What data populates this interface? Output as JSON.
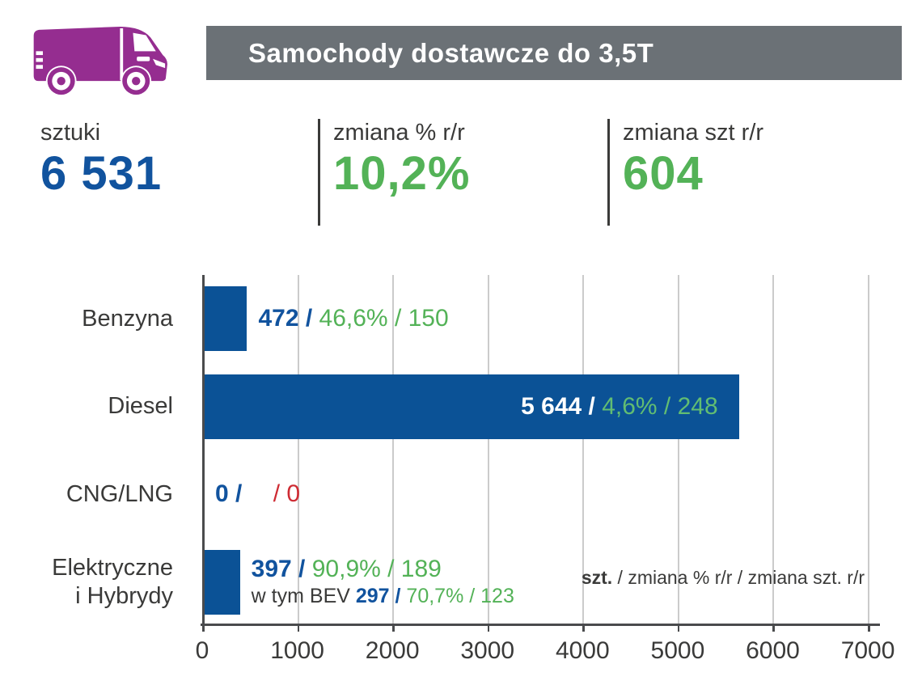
{
  "header": {
    "icon": "van-icon",
    "icon_color": "#952d90",
    "banner_color": "#6b7176",
    "title": "Samochody dostawcze do 3,5T"
  },
  "stats": [
    {
      "label": "sztuki",
      "value": "6 531",
      "color": "#11539e"
    },
    {
      "label": "zmiana % r/r",
      "value": "10,2%",
      "color": "#53b257"
    },
    {
      "label": "zmiana szt r/r",
      "value": "604",
      "color": "#53b257"
    }
  ],
  "colors": {
    "bar_blue": "#0b5296",
    "text_blue": "#11539e",
    "green": "#53b257",
    "light_green": "#62bd72",
    "red": "#ce2b33",
    "dark_text": "#3a3a39",
    "gridline": "#cbcbcb",
    "axis": "#4a4b4d"
  },
  "chart_data": {
    "type": "bar",
    "orientation": "horizontal",
    "title": "Samochody dostawcze do 3,5T",
    "xlabel": "",
    "ylabel": "",
    "xlim": [
      0,
      7110
    ],
    "x_ticks": [
      0,
      1000,
      2000,
      3000,
      4000,
      5000,
      6000,
      7000
    ],
    "grid": "vertical",
    "legend_position": "bottom-right",
    "legend": {
      "bold": "szt.",
      "rest": " / zmiana % r/r / zmiana szt. r/r"
    },
    "categories": [
      "Benzyna",
      "Diesel",
      "CNG/LNG",
      "Elektryczne i Hybrydy"
    ],
    "series": [
      {
        "name": "szt.",
        "values": [
          472,
          5644,
          0,
          397
        ]
      },
      {
        "name": "zmiana % r/r",
        "values": [
          "46,6%",
          "4,6%",
          null,
          "90,9%"
        ]
      },
      {
        "name": "zmiana szt. r/r",
        "values": [
          150,
          248,
          0,
          189
        ]
      }
    ],
    "rows": [
      {
        "label_lines": [
          "Benzyna"
        ],
        "value": 472,
        "num_text": "472 / ",
        "pct_text": "46,6% / 150",
        "pct_style": "pct-green",
        "placement": "outside"
      },
      {
        "label_lines": [
          "Diesel"
        ],
        "value": 5644,
        "num_text": "5 644 / ",
        "pct_text": "4,6% / 248",
        "pct_style": "pct-lightgreen",
        "placement": "inside"
      },
      {
        "label_lines": [
          "CNG/LNG"
        ],
        "value": 0,
        "num_text": "0 / ",
        "pct_text": "/ 0",
        "pct_style": "pct-red",
        "placement": "outside"
      },
      {
        "label_lines": [
          "Elektryczne",
          "i Hybrydy"
        ],
        "value": 397,
        "num_text": "397 / ",
        "pct_text": "90,9% / 189",
        "pct_style": "pct-green",
        "placement": "outside",
        "subline": {
          "prefix": "w tym BEV ",
          "num_text": "297 / ",
          "pct_text": "70,7% / 123"
        }
      }
    ]
  }
}
